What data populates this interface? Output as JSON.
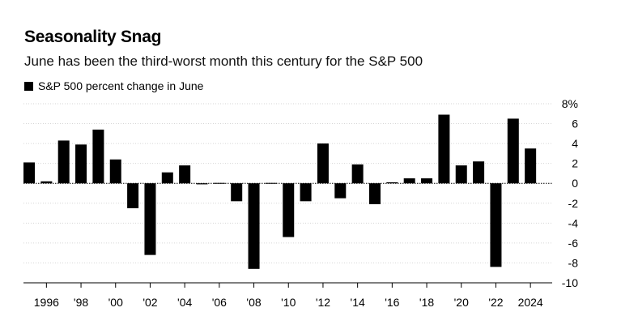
{
  "chart_data": {
    "type": "bar",
    "title": "Seasonality Snag",
    "subtitle": "June has been the third-worst month this century for the S&P 500",
    "legend": [
      "S&P 500 percent change in June"
    ],
    "legend_position": "top-left",
    "xlabel": "",
    "ylabel": "",
    "ylim": [
      -10,
      8
    ],
    "y_ticks": [
      8,
      6,
      4,
      2,
      0,
      -2,
      -4,
      -6,
      -8,
      -10
    ],
    "y_tick_labels": [
      "8%",
      "6",
      "4",
      "2",
      "0",
      "-2",
      "-4",
      "-6",
      "-8",
      "-10"
    ],
    "x_ticks": [
      1996,
      1998,
      2000,
      2002,
      2004,
      2006,
      2008,
      2010,
      2012,
      2014,
      2016,
      2018,
      2020,
      2022,
      2024
    ],
    "x_tick_labels": [
      "1996",
      "'98",
      "'00",
      "'02",
      "'04",
      "'06",
      "'08",
      "'10",
      "'12",
      "'14",
      "'16",
      "'18",
      "'20",
      "'22",
      "2024"
    ],
    "grid": "horizontal",
    "bar_color": "#000000",
    "categories": [
      1995,
      1996,
      1997,
      1998,
      1999,
      2000,
      2001,
      2002,
      2003,
      2004,
      2005,
      2006,
      2007,
      2008,
      2009,
      2010,
      2011,
      2012,
      2013,
      2014,
      2015,
      2016,
      2017,
      2018,
      2019,
      2020,
      2021,
      2022,
      2023,
      2024
    ],
    "values": [
      2.1,
      0.2,
      4.3,
      3.9,
      5.4,
      2.4,
      -2.5,
      -7.2,
      1.1,
      1.8,
      -0.1,
      0.0,
      -1.8,
      -8.6,
      0.0,
      -5.4,
      -1.8,
      4.0,
      -1.5,
      1.9,
      -2.1,
      0.1,
      0.5,
      0.5,
      6.9,
      1.8,
      2.2,
      -8.4,
      6.5,
      3.5
    ]
  }
}
